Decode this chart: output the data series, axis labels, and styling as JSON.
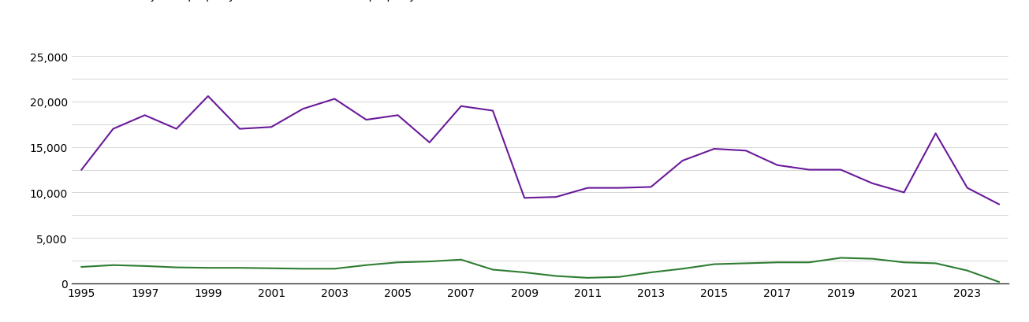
{
  "years": [
    1995,
    1996,
    1997,
    1998,
    1999,
    2000,
    2001,
    2002,
    2003,
    2004,
    2005,
    2006,
    2007,
    2008,
    2009,
    2010,
    2011,
    2012,
    2013,
    2014,
    2015,
    2016,
    2017,
    2018,
    2019,
    2020,
    2021,
    2022,
    2023,
    2024
  ],
  "new_homes": [
    1800,
    2000,
    1900,
    1750,
    1700,
    1700,
    1650,
    1600,
    1600,
    2000,
    2300,
    2400,
    2600,
    1500,
    1200,
    800,
    600,
    700,
    1200,
    1600,
    2100,
    2200,
    2300,
    2300,
    2800,
    2700,
    2300,
    2200,
    1400,
    150
  ],
  "established_homes": [
    12500,
    17000,
    18500,
    17000,
    20600,
    17000,
    17200,
    19200,
    20300,
    18000,
    18500,
    15500,
    19500,
    19000,
    9400,
    9500,
    10500,
    10500,
    10600,
    13500,
    14800,
    14600,
    13000,
    12500,
    12500,
    11000,
    10000,
    16500,
    10500,
    8700
  ],
  "new_color": "#2e7d32",
  "established_color": "#6a1a9a",
  "ylim": [
    0,
    27000
  ],
  "yticks": [
    0,
    5000,
    10000,
    15000,
    20000,
    25000
  ],
  "minor_yticks": [
    2500,
    7500,
    12500,
    17500,
    22500
  ],
  "bg_color": "#ffffff",
  "grid_color": "#d0d0d0",
  "line_width": 1.5,
  "tick_fontsize": 10,
  "legend_fontsize": 10
}
